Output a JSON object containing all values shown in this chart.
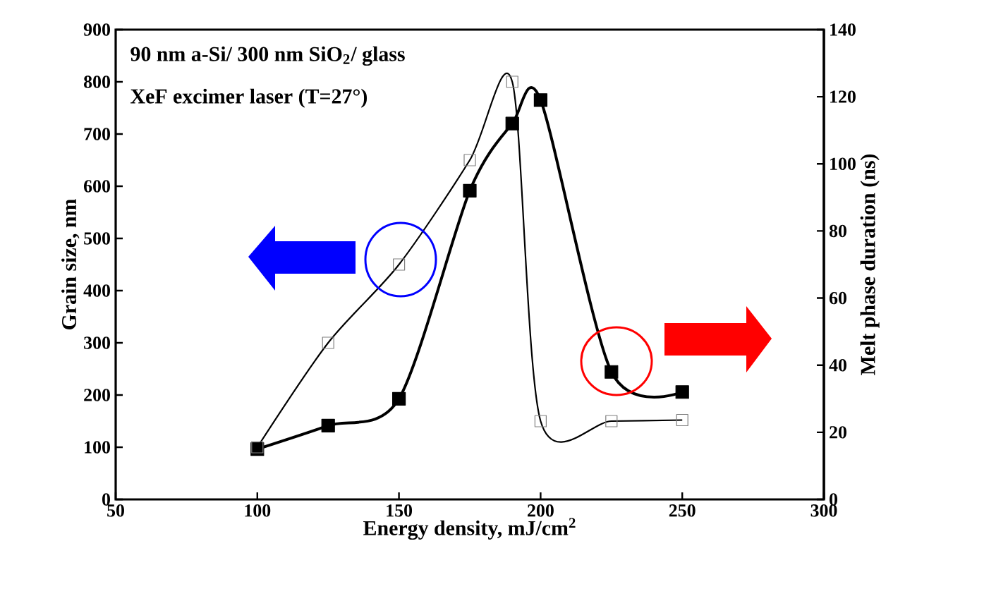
{
  "chart_data": {
    "type": "line",
    "xlabel": "Energy density,  mJ/cm$^{2}$",
    "ylabel": "Grain size,  nm",
    "y2label": "Melt phase duration (ns)",
    "annotations": [
      "90 nm a-Si/ 300 nm SiO$_{2}$/ glass",
      "XeF excimer laser (T=27°)"
    ],
    "x": [
      100,
      125,
      150,
      175,
      190,
      200,
      225,
      250
    ],
    "series": [
      {
        "color": "#000000",
        "values": [
          100,
          300,
          450,
          650,
          800,
          150,
          150,
          152
        ]
      },
      {
        "color": "#000000",
        "axis": "y2",
        "values": [
          15,
          22,
          30,
          92,
          112,
          119,
          38,
          32
        ]
      }
    ],
    "marker": "square",
    "line_style": "solid",
    "xlim": [
      50,
      300
    ],
    "xticks": [
      50,
      100,
      150,
      200,
      250,
      300
    ],
    "ylim": [
      0,
      900
    ],
    "yticks": [
      0,
      100,
      200,
      300,
      400,
      500,
      600,
      700,
      800,
      900
    ],
    "y2lim": [
      0,
      140
    ],
    "y2ticks": [
      0,
      20,
      40,
      60,
      80,
      100,
      120,
      140
    ]
  }
}
